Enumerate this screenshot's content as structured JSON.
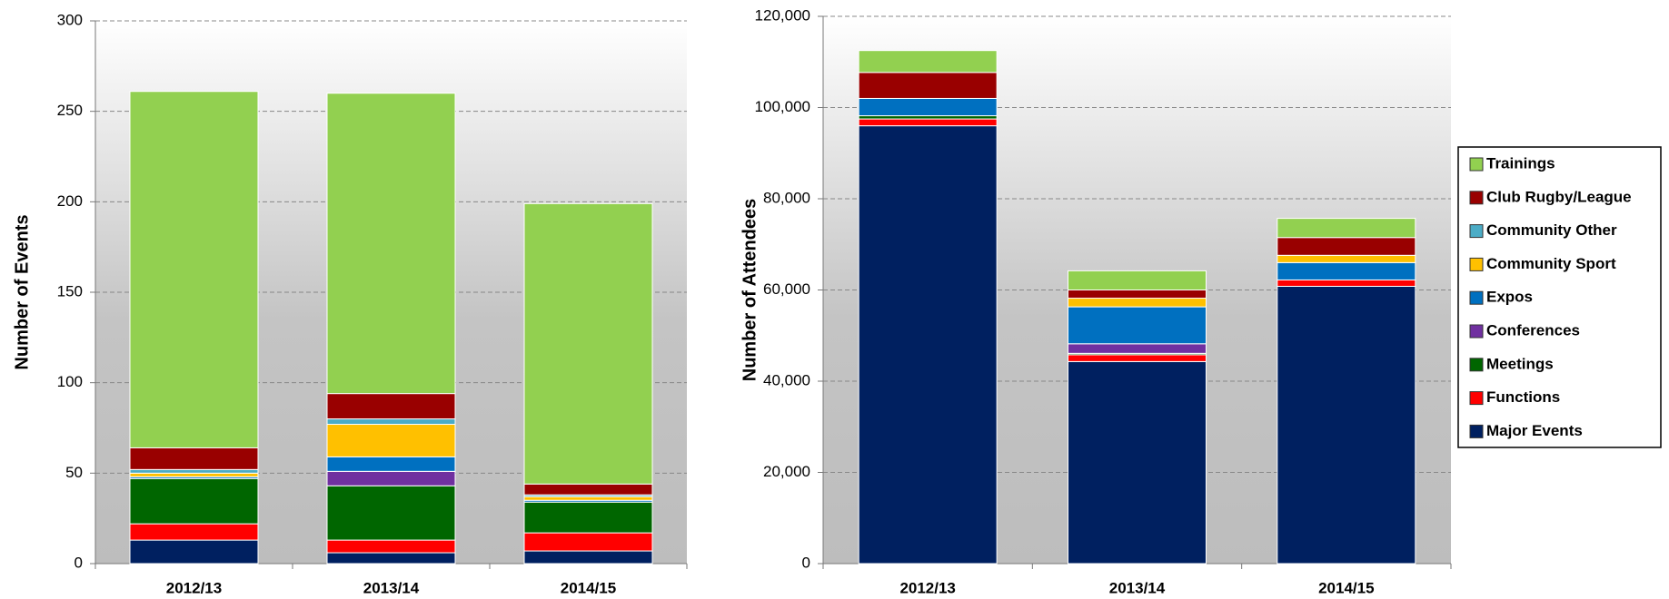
{
  "chart_data": [
    {
      "type": "stacked_bar",
      "y_label": "Number of Events",
      "categories": [
        "2012/13",
        "2013/14",
        "2014/15"
      ],
      "ylim": [
        0,
        300
      ],
      "yticks": [
        0,
        50,
        100,
        150,
        200,
        250,
        300
      ],
      "grid": true,
      "series": [
        {
          "color": "#002060",
          "values": [
            13,
            6,
            7
          ]
        },
        {
          "color": "#ff0000",
          "values": [
            9,
            7,
            10
          ]
        },
        {
          "color": "#006600",
          "values": [
            25,
            30,
            17
          ]
        },
        {
          "color": "#7030a0",
          "values": [
            0,
            8,
            0
          ]
        },
        {
          "color": "#0070c0",
          "values": [
            1,
            8,
            1
          ]
        },
        {
          "color": "#ffc000",
          "values": [
            2,
            18,
            2
          ]
        },
        {
          "color": "#4bacc6",
          "values": [
            2,
            3,
            1
          ]
        },
        {
          "color": "#990000",
          "values": [
            12,
            14,
            6
          ]
        },
        {
          "color": "#92d050",
          "values": [
            197,
            166,
            155
          ]
        }
      ]
    },
    {
      "type": "stacked_bar",
      "y_label": "Number of Attendees",
      "categories": [
        "2012/13",
        "2013/14",
        "2014/15"
      ],
      "ylim": [
        0,
        120000
      ],
      "yticks": [
        0,
        {
          "value": 20000,
          "label": "20,000"
        },
        {
          "value": 40000,
          "label": "40,000"
        },
        {
          "value": 60000,
          "label": "60,000"
        },
        {
          "value": 80000,
          "label": "80,000"
        },
        {
          "value": 100000,
          "label": "100,000"
        },
        {
          "value": 120000,
          "label": "120,000"
        }
      ],
      "grid": true,
      "legend": "right",
      "series": [
        {
          "name": "Major Events",
          "color": "#002060",
          "values": [
            96000,
            44300,
            60800
          ]
        },
        {
          "name": "Functions",
          "color": "#ff0000",
          "values": [
            1500,
            1500,
            1400
          ]
        },
        {
          "name": "Meetings",
          "color": "#006600",
          "values": [
            700,
            300,
            0
          ]
        },
        {
          "name": "Conferences",
          "color": "#7030a0",
          "values": [
            0,
            2100,
            0
          ]
        },
        {
          "name": "Expos",
          "color": "#0070c0",
          "values": [
            3800,
            8100,
            3800
          ]
        },
        {
          "name": "Community Sport",
          "color": "#ffc000",
          "values": [
            0,
            1900,
            1600
          ]
        },
        {
          "name": "Community Other",
          "color": "#4bacc6",
          "values": [
            0,
            0,
            0
          ]
        },
        {
          "name": "Club Rugby/League",
          "color": "#990000",
          "values": [
            5700,
            1800,
            3900
          ]
        },
        {
          "name": "Trainings",
          "color": "#92d050",
          "values": [
            4800,
            4200,
            4200
          ]
        }
      ]
    }
  ]
}
